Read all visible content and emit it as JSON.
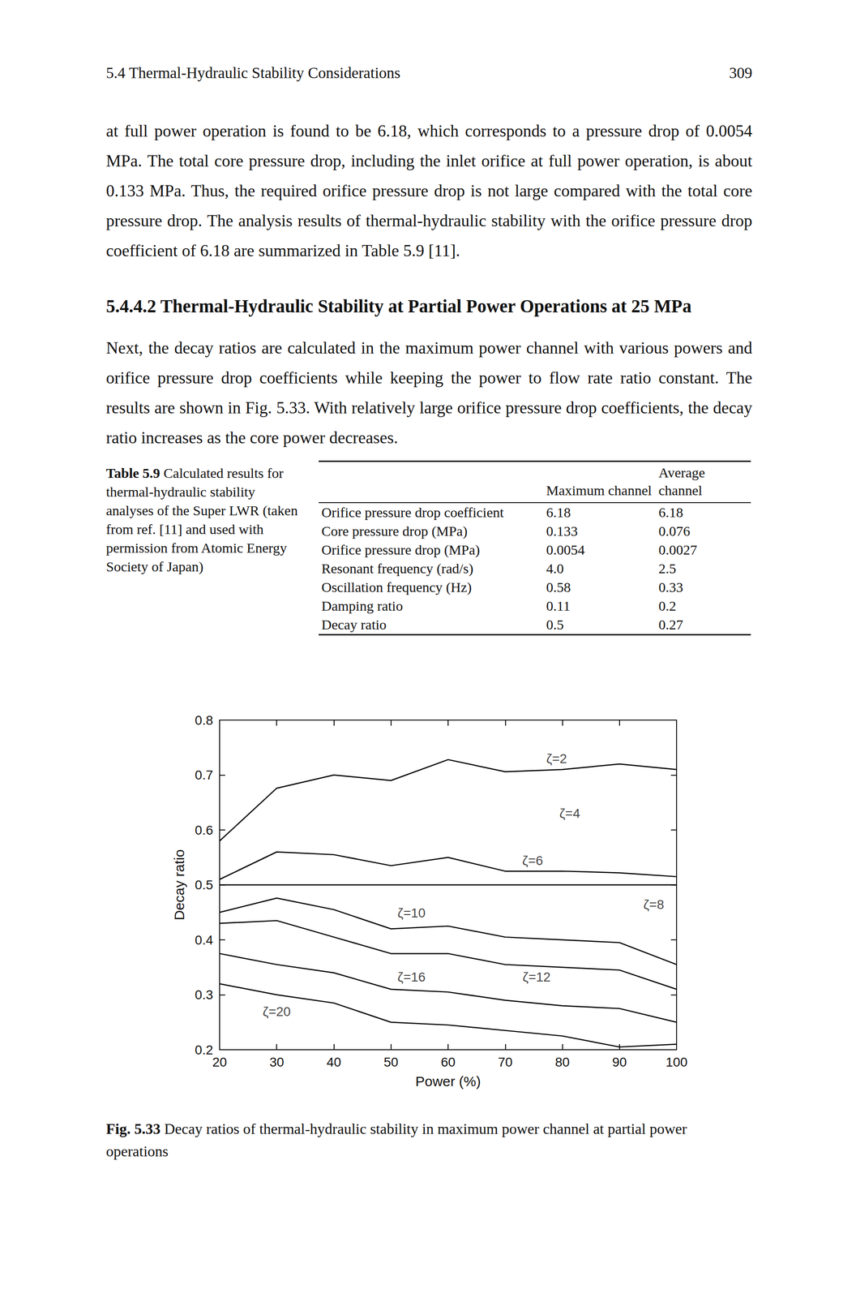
{
  "header": {
    "section": "5.4 Thermal-Hydraulic Stability Considerations",
    "page": "309"
  },
  "paragraphs": [
    "at full power operation is found to be 6.18, which corresponds to a pressure drop of 0.0054 MPa. The total core pressure drop, including the inlet orifice at full power operation, is about 0.133 MPa. Thus, the required orifice pressure drop is not large compared with the total core pressure drop. The analysis results of thermal-hydraulic stability with the orifice pressure drop coefficient of 6.18 are summarized in Table 5.9 [11].",
    "Next, the decay ratios are calculated in the maximum power channel with various powers and orifice pressure drop coefficients while keeping the power to flow rate ratio constant. The results are shown in Fig. 5.33. With relatively large orifice pressure drop coefficients, the decay ratio increases as the core power decreases."
  ],
  "heading": "5.4.4.2 Thermal-Hydraulic Stability at Partial Power Operations at 25 MPa",
  "table": {
    "caption": {
      "label": "Table 5.9",
      "text": "Calculated results for thermal-hydraulic stability analyses of the Super LWR (taken from ref. [11] and used with permission from Atomic Energy Society of Japan)"
    },
    "columns": [
      "Maximum channel",
      "Average channel"
    ],
    "rows": [
      [
        "Orifice pressure drop coefficient",
        "6.18",
        "6.18"
      ],
      [
        "Core pressure drop (MPa)",
        "0.133",
        "0.076"
      ],
      [
        "Orifice pressure drop (MPa)",
        "0.0054",
        "0.0027"
      ],
      [
        "Resonant frequency (rad/s)",
        "4.0",
        "2.5"
      ],
      [
        "Oscillation frequency (Hz)",
        "0.58",
        "0.33"
      ],
      [
        "Damping ratio",
        "0.11",
        "0.2"
      ],
      [
        "Decay ratio",
        "0.5",
        "0.27"
      ]
    ]
  },
  "figure_caption": {
    "label": "Fig. 5.33",
    "text": "Decay ratios of thermal-hydraulic stability in maximum power channel at partial power operations"
  },
  "chart_data": {
    "type": "line",
    "x_label": "Power (%)",
    "y_label": "Decay ratio",
    "x": [
      20,
      30,
      40,
      50,
      60,
      70,
      80,
      90,
      100
    ],
    "series": [
      {
        "name": "ζ=2",
        "color": "#000000",
        "values": [
          0.58,
          0.676,
          0.7,
          0.69,
          0.728,
          0.706,
          0.71,
          0.72,
          0.71
        ]
      },
      {
        "name": "ζ=6",
        "color": "#000000",
        "values": [
          0.51,
          0.56,
          0.555,
          0.535,
          0.55,
          0.525,
          0.525,
          0.522,
          0.515
        ]
      },
      {
        "name": "ζ=8",
        "color": "#000000",
        "values": [
          0.5,
          0.5,
          0.5,
          0.5,
          0.5,
          0.5,
          0.5,
          0.5,
          0.5
        ]
      },
      {
        "name": "ζ=10",
        "color": "#000000",
        "values": [
          0.45,
          0.476,
          0.455,
          0.42,
          0.425,
          0.405,
          0.4,
          0.395,
          0.355
        ]
      },
      {
        "name": "ζ=12",
        "color": "#000000",
        "values": [
          0.43,
          0.435,
          0.405,
          0.375,
          0.375,
          0.355,
          0.35,
          0.345,
          0.31
        ]
      },
      {
        "name": "ζ=16",
        "color": "#000000",
        "values": [
          0.375,
          0.355,
          0.34,
          0.31,
          0.305,
          0.29,
          0.28,
          0.275,
          0.25
        ]
      },
      {
        "name": "ζ=20",
        "color": "#000000",
        "values": [
          0.32,
          0.3,
          0.285,
          0.25,
          0.245,
          0.235,
          0.225,
          0.205,
          0.21
        ]
      }
    ],
    "annotations": [
      {
        "text": "ζ=2",
        "x": 79,
        "y": 0.73
      },
      {
        "text": "ζ=4",
        "x": 81.3,
        "y": 0.63
      },
      {
        "text": "ζ=6",
        "x": 74.8,
        "y": 0.544
      },
      {
        "text": "ζ=8",
        "x": 96,
        "y": 0.464
      },
      {
        "text": "ζ=10",
        "x": 53.6,
        "y": 0.449
      },
      {
        "text": "ζ=12",
        "x": 75.5,
        "y": 0.332
      },
      {
        "text": "ζ=16",
        "x": 53.6,
        "y": 0.332
      },
      {
        "text": "ζ=20",
        "x": 30,
        "y": 0.269
      }
    ],
    "xlim": [
      20,
      100
    ],
    "xticks": [
      20,
      30,
      40,
      50,
      60,
      70,
      80,
      90,
      100
    ],
    "ylim": [
      0.2,
      0.8
    ],
    "yticks": [
      0.2,
      0.3,
      0.4,
      0.5,
      0.6,
      0.7,
      0.8
    ],
    "marker": "none",
    "line_style": "solid",
    "grid": false
  }
}
